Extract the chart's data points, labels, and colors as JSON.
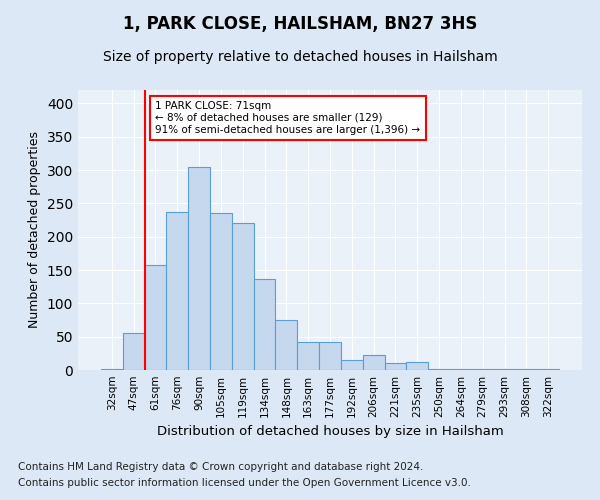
{
  "title": "1, PARK CLOSE, HAILSHAM, BN27 3HS",
  "subtitle": "Size of property relative to detached houses in Hailsham",
  "xlabel": "Distribution of detached houses by size in Hailsham",
  "ylabel": "Number of detached properties",
  "categories": [
    "32sqm",
    "47sqm",
    "61sqm",
    "76sqm",
    "90sqm",
    "105sqm",
    "119sqm",
    "134sqm",
    "148sqm",
    "163sqm",
    "177sqm",
    "192sqm",
    "206sqm",
    "221sqm",
    "235sqm",
    "250sqm",
    "264sqm",
    "279sqm",
    "293sqm",
    "308sqm",
    "322sqm"
  ],
  "values": [
    2,
    55,
    157,
    237,
    304,
    236,
    220,
    136,
    75,
    42,
    42,
    15,
    22,
    10,
    12,
    2,
    2,
    2,
    2,
    2,
    2
  ],
  "bar_color": "#c5d8ee",
  "bar_edge_color": "#5a9fd4",
  "vline_x_index": 1.5,
  "vline_color": "red",
  "annotation_text": "1 PARK CLOSE: 71sqm\n← 8% of detached houses are smaller (129)\n91% of semi-detached houses are larger (1,396) →",
  "annotation_box_color": "white",
  "annotation_box_edge_color": "red",
  "ylim": [
    0,
    420
  ],
  "yticks": [
    0,
    50,
    100,
    150,
    200,
    250,
    300,
    350,
    400
  ],
  "footer1": "Contains HM Land Registry data © Crown copyright and database right 2024.",
  "footer2": "Contains public sector information licensed under the Open Government Licence v3.0.",
  "background_color": "#dce8f5",
  "plot_background_color": "#eaf1f8",
  "title_fontsize": 12,
  "subtitle_fontsize": 10,
  "xlabel_fontsize": 9.5,
  "ylabel_fontsize": 9,
  "footer_fontsize": 7.5,
  "tick_fontsize": 7.5
}
